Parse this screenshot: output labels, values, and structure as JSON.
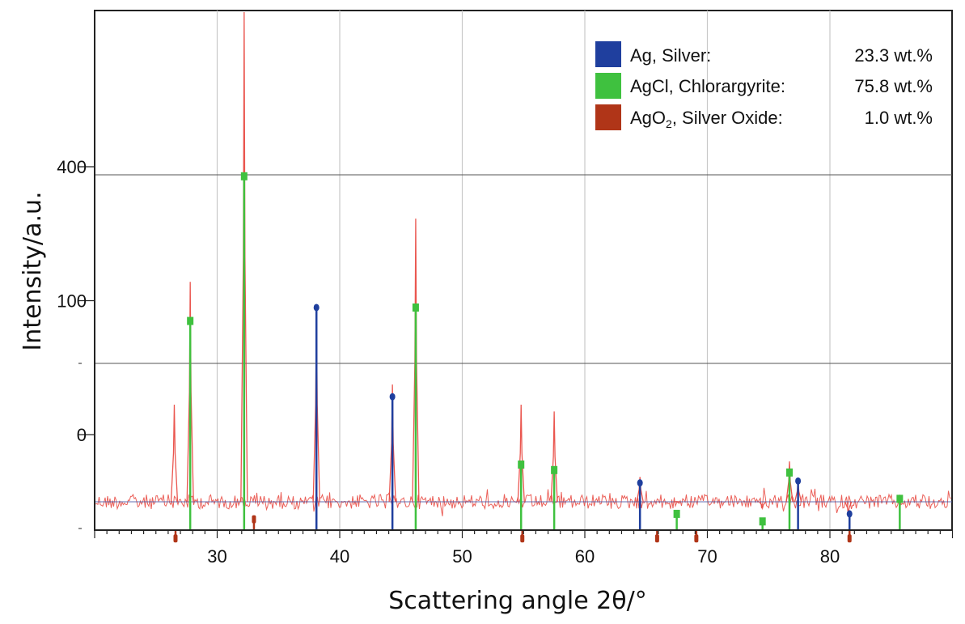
{
  "chart_data": {
    "type": "line",
    "xlabel": "Scattering angle 2θ/°",
    "ylabel": "Intensity/a.u.",
    "xlim": [
      20,
      90
    ],
    "y_scale": "sqrt",
    "ylim": [
      0,
      1100
    ],
    "grid": true,
    "legend_position": "top-right",
    "x_ticks": [
      30,
      40,
      50,
      60,
      70,
      80
    ],
    "y_ticks": [
      0,
      100,
      400
    ],
    "y_tick_labels": [
      "0",
      "100",
      "400"
    ],
    "background_level": 0,
    "colors": {
      "observed": "#e8443c",
      "Ag": "#1f3f9e",
      "AgCl": "#3fc13f",
      "AgO2": "#b03518"
    },
    "observed_peaks": [
      {
        "x": 26.5,
        "y": 5
      },
      {
        "x": 27.8,
        "y": 130
      },
      {
        "x": 32.2,
        "y": 1100
      },
      {
        "x": 38.1,
        "y": 90
      },
      {
        "x": 44.3,
        "y": 14
      },
      {
        "x": 46.2,
        "y": 260
      },
      {
        "x": 54.8,
        "y": 5
      },
      {
        "x": 57.5,
        "y": 3
      },
      {
        "x": 64.5,
        "y": -10
      },
      {
        "x": 67.5,
        "y": -25
      },
      {
        "x": 74.5,
        "y": -30
      },
      {
        "x": 76.7,
        "y": -4
      },
      {
        "x": 77.4,
        "y": -12
      },
      {
        "x": 81.5,
        "y": -35
      },
      {
        "x": 85.7,
        "y": -25
      }
    ],
    "series": [
      {
        "name": "Ag, Silver:",
        "value_label": "23.3 wt.%",
        "peaks": [
          {
            "x": 38.1,
            "y": 90
          },
          {
            "x": 44.3,
            "y": 8
          },
          {
            "x": 64.5,
            "y": -13
          },
          {
            "x": 77.4,
            "y": -12
          },
          {
            "x": 81.6,
            "y": -35
          }
        ]
      },
      {
        "name": "AgCl, Chlorargyrite:",
        "value_label": "75.8 wt.%",
        "peaks": [
          {
            "x": 27.8,
            "y": 72
          },
          {
            "x": 32.2,
            "y": 372
          },
          {
            "x": 46.2,
            "y": 90
          },
          {
            "x": 54.8,
            "y": -5
          },
          {
            "x": 57.5,
            "y": -7
          },
          {
            "x": 67.5,
            "y": -35
          },
          {
            "x": 74.5,
            "y": -42
          },
          {
            "x": 76.7,
            "y": -8
          },
          {
            "x": 85.7,
            "y": -23
          }
        ]
      },
      {
        "name_parts": [
          "AgO",
          "2",
          ", Silver Oxide:"
        ],
        "value_label": "1.0 wt.%",
        "peaks": [
          {
            "x": 26.6,
            "y": -60
          },
          {
            "x": 33.0,
            "y": -40
          },
          {
            "x": 54.9,
            "y": -60
          },
          {
            "x": 65.9,
            "y": -60
          },
          {
            "x": 69.1,
            "y": -60
          },
          {
            "x": 81.6,
            "y": -60
          }
        ]
      }
    ]
  }
}
